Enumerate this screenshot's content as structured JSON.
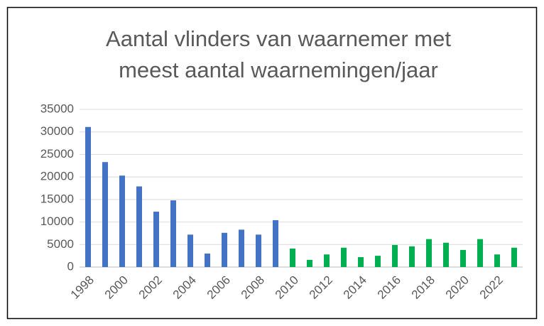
{
  "chart_data": {
    "type": "bar",
    "title": [
      "Aantal vlinders van waarnemer met",
      "meest aantal waarnemingen/jaar"
    ],
    "categories": [
      "1998",
      null,
      "2000",
      null,
      "2002",
      null,
      "2004",
      null,
      "2006",
      null,
      "2008",
      null,
      "2010",
      null,
      "2012",
      null,
      "2014",
      null,
      "2016",
      null,
      "2018",
      null,
      "2020",
      null,
      "2022",
      null
    ],
    "values": [
      31100,
      23300,
      20300,
      17900,
      12300,
      14800,
      7200,
      3000,
      7600,
      8300,
      7200,
      10400,
      4100,
      1600,
      2800,
      4300,
      2200,
      2500,
      4900,
      4600,
      6200,
      5400,
      3800,
      6200,
      2800,
      4300
    ],
    "colors": [
      "#4472c4",
      "#4472c4",
      "#4472c4",
      "#4472c4",
      "#4472c4",
      "#4472c4",
      "#4472c4",
      "#4472c4",
      "#4472c4",
      "#4472c4",
      "#4472c4",
      "#4472c4",
      "#00b050",
      "#00b050",
      "#00b050",
      "#00b050",
      "#00b050",
      "#00b050",
      "#00b050",
      "#00b050",
      "#00b050",
      "#00b050",
      "#00b050",
      "#00b050",
      "#00b050",
      "#00b050"
    ],
    "ylim": [
      0,
      35000
    ],
    "yticks": [
      0,
      5000,
      10000,
      15000,
      20000,
      25000,
      30000,
      35000
    ],
    "grid": true
  }
}
